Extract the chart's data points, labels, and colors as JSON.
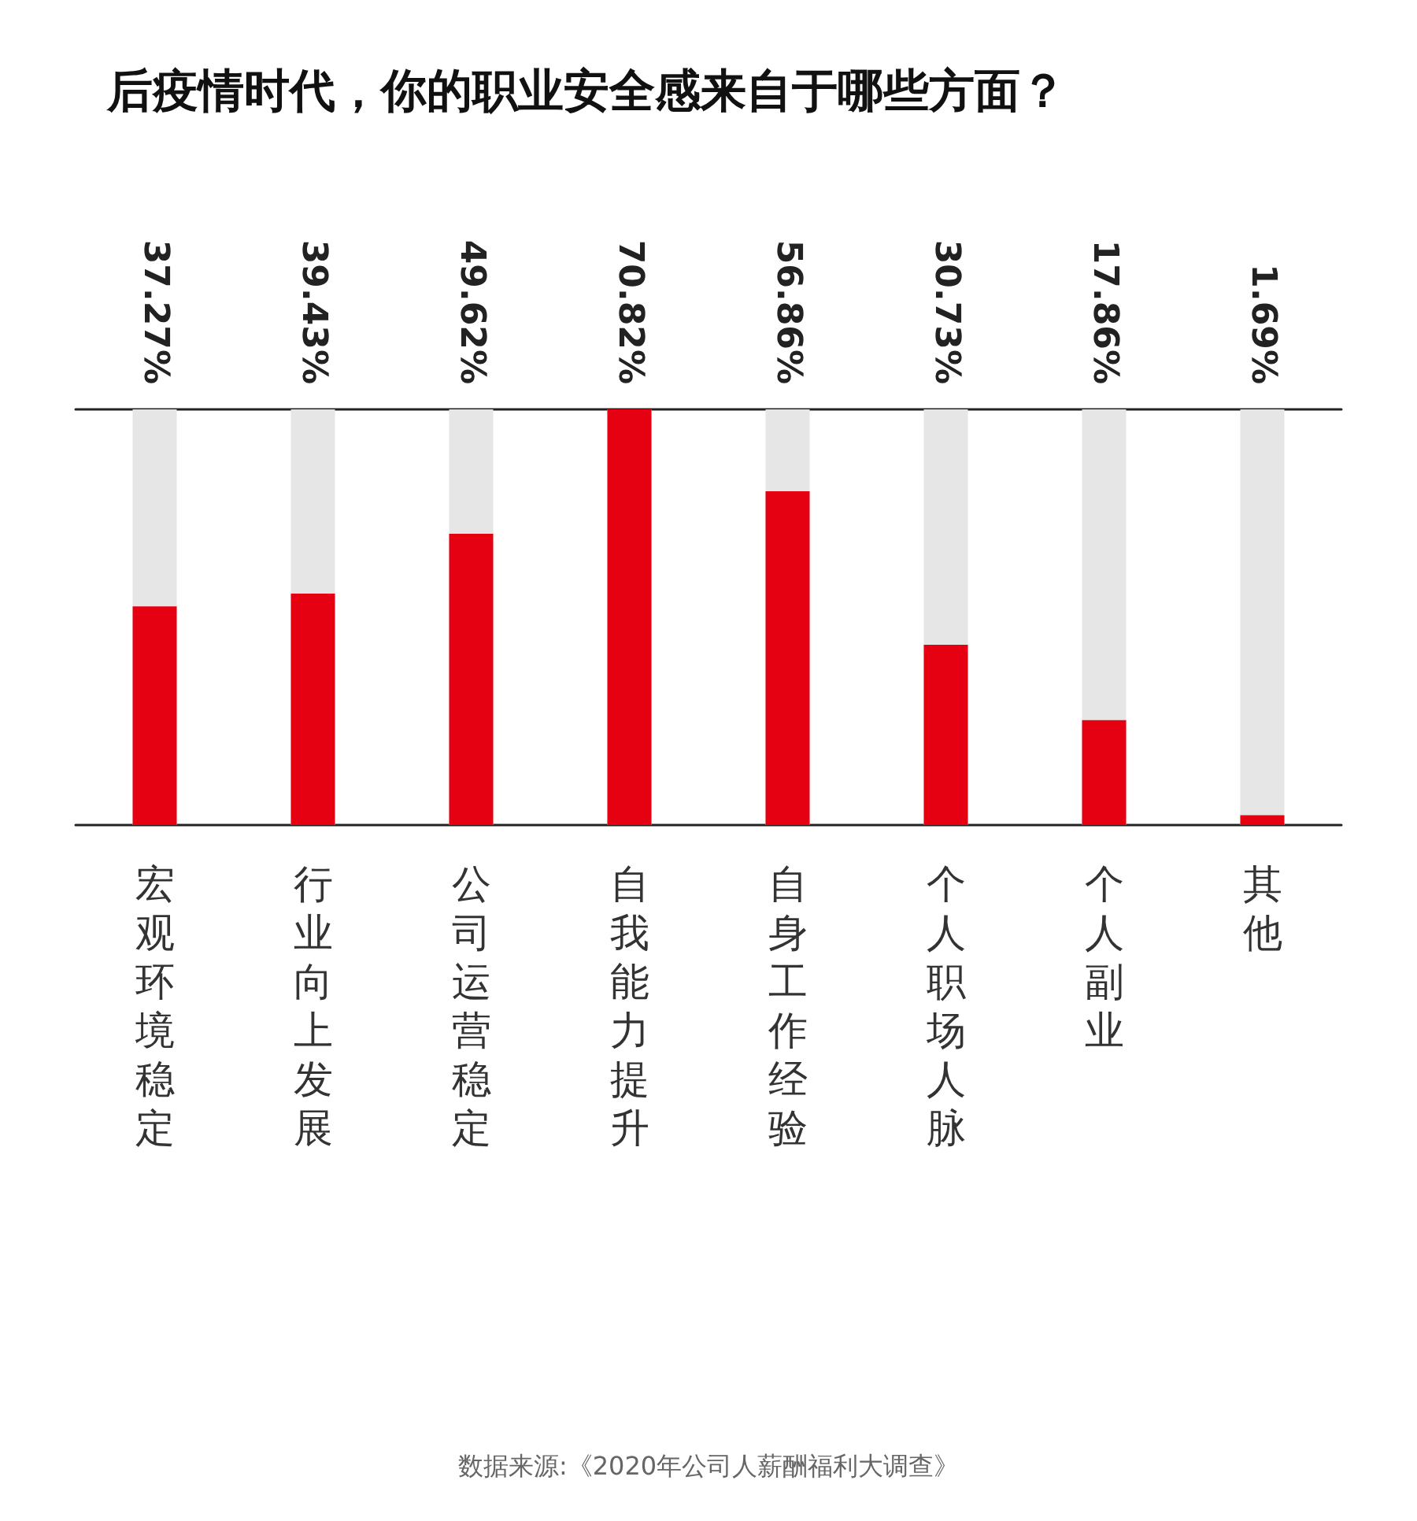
{
  "chart_data": {
    "type": "bar",
    "title": "后疫情时代，你的职业安全感来自于哪些方面？",
    "categories": [
      "宏观环境稳定",
      "行业向上发展",
      "公司运营稳定",
      "自我能力提升",
      "自身工作经验",
      "个人职场人脉",
      "个人副业",
      "其他"
    ],
    "values": [
      37.27,
      39.43,
      49.62,
      70.82,
      56.86,
      30.73,
      17.86,
      1.69
    ],
    "value_labels": [
      "37.27%",
      "39.43%",
      "49.62%",
      "70.82%",
      "56.86%",
      "30.73%",
      "17.86%",
      "1.69%"
    ],
    "color": "#e50012",
    "ylim": [
      0,
      70.82
    ],
    "tick_labels": "x",
    "annotations": [
      "数据来源:《2020年公司人薪酬福利大调查》"
    ]
  }
}
